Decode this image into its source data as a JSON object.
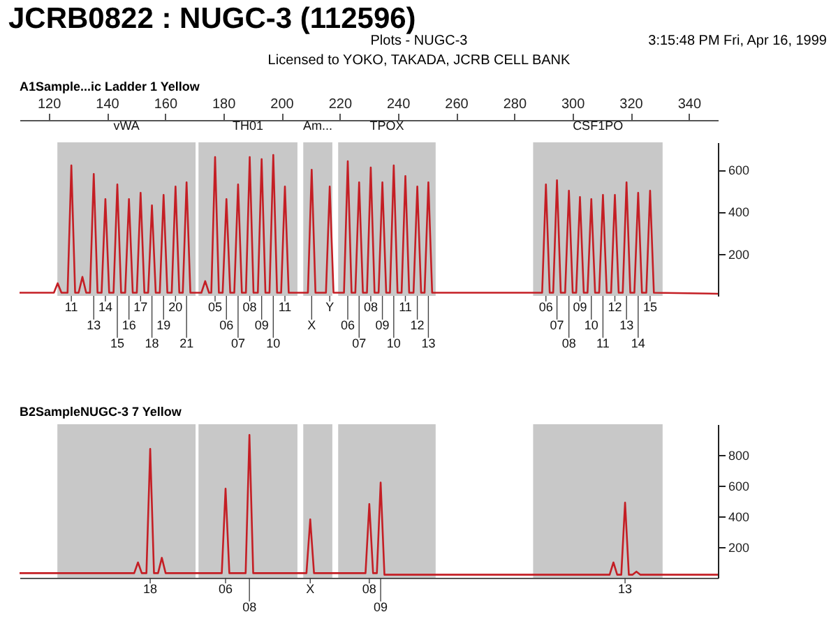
{
  "chart_data": [
    {
      "type": "line",
      "title": "JCRB0822 : NUGC-3 (112596)",
      "subtitle": "A1Sample...ic Ladder  1 Yellow",
      "annotations": [
        "Plots - NUGC-3",
        "Licensed to YOKO, TAKADA, JCRB CELL BANK",
        "3:15:48 PM Fri, Apr 16, 1999",
        "11",
        "13",
        "14",
        "15",
        "16",
        "17",
        "18",
        "19",
        "20",
        "21",
        "05",
        "06",
        "07",
        "08",
        "09",
        "10",
        "11",
        "X",
        "Y",
        "06",
        "07",
        "08",
        "09",
        "10",
        "11",
        "12",
        "13",
        "06",
        "07",
        "08",
        "09",
        "10",
        "11",
        "12",
        "13",
        "14",
        "15"
      ],
      "series": [
        {
          "color": "#c41e24",
          "x": [
            110,
            121.8,
            123.1,
            124.4,
            126.5,
            127.8,
            129.1,
            130.3,
            131.6,
            132.9,
            134.2,
            135.5,
            136.8,
            138.2,
            139.5,
            140.8,
            142.3,
            143.6,
            144.9,
            146.3,
            147.6,
            148.9,
            150.3,
            151.6,
            152.9,
            154.2,
            155.5,
            156.8,
            158.2,
            159.5,
            160.8,
            162.3,
            163.6,
            164.9,
            166.1,
            167.4,
            168.7,
            172.5,
            173.8,
            175.1,
            175.9,
            177.2,
            178.5,
            179.8,
            181.1,
            182.4,
            183.8,
            185.1,
            186.4,
            187.8,
            189.1,
            190.4,
            191.9,
            193.2,
            194.5,
            195.9,
            197.2,
            198.5,
            199.9,
            201.2,
            202.5,
            209.1,
            210.4,
            211.7,
            215.3,
            216.6,
            217.9,
            221.5,
            222.8,
            224.1,
            225.4,
            226.7,
            228.0,
            229.4,
            230.7,
            232.0,
            233.4,
            234.7,
            236.0,
            237.3,
            238.6,
            239.9,
            241.3,
            242.6,
            243.9,
            245.4,
            246.7,
            248.0,
            249.2,
            250.5,
            251.8,
            289.6,
            290.9,
            292.2,
            293.4,
            294.7,
            296.0,
            297.5,
            298.8,
            300.1,
            301.3,
            302.6,
            303.9,
            305.2,
            306.5,
            307.8,
            309.2,
            310.5,
            311.8,
            313.3,
            314.6,
            315.9,
            317.3,
            318.6,
            319.9,
            321.3,
            322.6,
            323.9,
            325.4,
            326.7,
            328.0,
            350
          ],
          "values": [
            15,
            15,
            60,
            15,
            15,
            620,
            15,
            15,
            90,
            15,
            15,
            580,
            15,
            15,
            460,
            15,
            15,
            530,
            15,
            15,
            460,
            15,
            15,
            490,
            15,
            15,
            430,
            15,
            15,
            480,
            15,
            15,
            520,
            15,
            15,
            540,
            15,
            15,
            70,
            15,
            15,
            660,
            15,
            15,
            460,
            15,
            15,
            530,
            15,
            15,
            660,
            15,
            15,
            650,
            15,
            15,
            670,
            15,
            15,
            520,
            15,
            15,
            600,
            15,
            15,
            520,
            15,
            15,
            640,
            15,
            15,
            540,
            15,
            15,
            610,
            15,
            15,
            540,
            15,
            15,
            620,
            15,
            15,
            570,
            15,
            15,
            520,
            15,
            15,
            540,
            15,
            15,
            530,
            15,
            15,
            550,
            15,
            15,
            500,
            15,
            15,
            470,
            15,
            15,
            460,
            15,
            15,
            480,
            15,
            15,
            480,
            15,
            15,
            540,
            15,
            15,
            490,
            15,
            15,
            500,
            15,
            10
          ]
        }
      ],
      "bands": [
        {
          "axis": "x",
          "from": 123,
          "to": 170.5,
          "label": "vWA",
          "color": "#c8c8c8"
        },
        {
          "axis": "x",
          "from": 171.5,
          "to": 205.5,
          "label": "TH01",
          "color": "#c8c8c8"
        },
        {
          "axis": "x",
          "from": 207.5,
          "to": 217.5,
          "label": "Am...",
          "color": "#c8c8c8"
        },
        {
          "axis": "x",
          "from": 219.5,
          "to": 253,
          "label": "TPOX",
          "color": "#c8c8c8"
        },
        {
          "axis": "x",
          "from": 286.5,
          "to": 331,
          "label": "CSF1PO",
          "color": "#c8c8c8"
        }
      ],
      "xlim": [
        110,
        350
      ],
      "xticks": [
        120,
        140,
        160,
        180,
        200,
        220,
        240,
        260,
        280,
        300,
        320,
        340
      ],
      "ylim": [
        0,
        730
      ],
      "yticks": [
        200,
        400,
        600
      ]
    },
    {
      "type": "line",
      "subtitle": "B2SampleNUGC-3   7 Yellow",
      "annotations": [
        "18",
        "06",
        "08",
        "X",
        "08",
        "09",
        "13"
      ],
      "series": [
        {
          "color": "#c41e24",
          "x": [
            110,
            149.4,
            150.7,
            152.0,
            153.6,
            154.9,
            156.2,
            157.6,
            158.9,
            160.2,
            179.5,
            180.8,
            182.1,
            187.7,
            189.0,
            190.3,
            208.6,
            209.9,
            211.2,
            228.9,
            230.2,
            231.5,
            232.8,
            234.1,
            235.4,
            312.8,
            314.1,
            315.4,
            316.8,
            318.1,
            319.4,
            320.7,
            322.0,
            323.3,
            350
          ],
          "values": [
            30,
            30,
            100,
            30,
            30,
            840,
            30,
            30,
            130,
            30,
            30,
            580,
            30,
            30,
            930,
            30,
            30,
            380,
            30,
            30,
            480,
            30,
            30,
            620,
            20,
            20,
            100,
            20,
            20,
            490,
            20,
            20,
            40,
            20,
            20
          ]
        }
      ],
      "bands": [
        {
          "axis": "x",
          "from": 123,
          "to": 170.5,
          "color": "#c8c8c8"
        },
        {
          "axis": "x",
          "from": 171.5,
          "to": 205.5,
          "color": "#c8c8c8"
        },
        {
          "axis": "x",
          "from": 207.5,
          "to": 217.5,
          "color": "#c8c8c8"
        },
        {
          "axis": "x",
          "from": 219.5,
          "to": 253,
          "color": "#c8c8c8"
        },
        {
          "axis": "x",
          "from": 286.5,
          "to": 331,
          "color": "#c8c8c8"
        }
      ],
      "xlim": [
        110,
        350
      ],
      "xticks": [
        120,
        140,
        160,
        180,
        200,
        220,
        240,
        260,
        280,
        300,
        320,
        340
      ],
      "ylim": [
        0,
        1000
      ],
      "yticks": [
        200,
        400,
        600,
        800
      ],
      "tick_labels": "y"
    }
  ]
}
